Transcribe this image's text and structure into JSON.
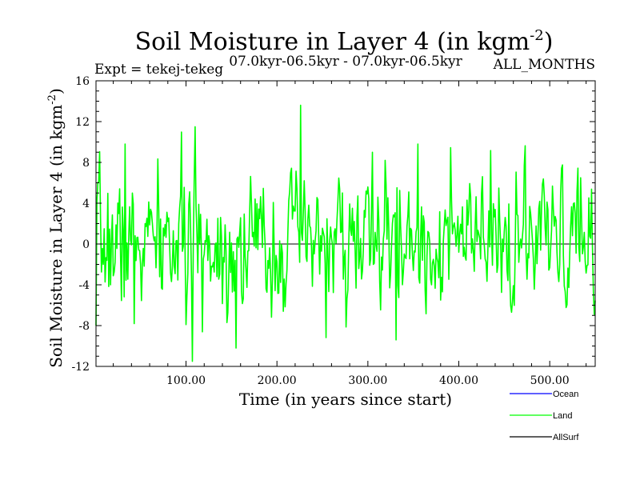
{
  "chart_data": {
    "type": "line",
    "title": "Soil Moisture in Layer 4 (in kgm",
    "title_sup": "-2",
    "title_close": ")",
    "subtitle_left": "Expt = tekej-tekeg",
    "subtitle_center": "07.0kyr-06.5kyr - 07.0kyr-06.5kyr",
    "subtitle_right": "ALL_MONTHS",
    "xlabel": "Time (in years since start)",
    "ylabel": "Soil Moisture in Layer 4 (in kgm",
    "ylabel_sup": "-2",
    "ylabel_close": ")",
    "xlim": [
      1,
      550
    ],
    "ylim": [
      -12,
      16
    ],
    "x_ticks": [
      100,
      200,
      300,
      400,
      500
    ],
    "x_tick_labels": [
      "100.00",
      "200.00",
      "300.00",
      "400.00",
      "500.00"
    ],
    "y_ticks": [
      -12,
      -8,
      -4,
      0,
      4,
      8,
      12,
      16
    ],
    "y_tick_labels": [
      "-12",
      "-8",
      "-4",
      "0",
      "4",
      "8",
      "12",
      "16"
    ],
    "zero_line": true,
    "series": [
      {
        "name": "Ocean",
        "color": "#0000ff",
        "values": []
      },
      {
        "name": "Land",
        "color": "#00ff00",
        "generated": {
          "count": 550,
          "mean": 0,
          "sd": 3.2,
          "ar": 0.35,
          "seed": 7
        },
        "extremes": [
          {
            "x": 107,
            "y": -11.5
          },
          {
            "x": 110,
            "y": 11.5
          },
          {
            "x": 155,
            "y": -10.2
          },
          {
            "x": 226,
            "y": 13.6
          },
          {
            "x": 331,
            "y": -9.4
          },
          {
            "x": 355,
            "y": 9.8
          },
          {
            "x": 1,
            "y": -8.0
          },
          {
            "x": 43,
            "y": -7.8
          },
          {
            "x": 33,
            "y": 9.8
          },
          {
            "x": 305,
            "y": 9.0
          }
        ]
      },
      {
        "name": "AllSurf",
        "color": "#000000",
        "values": []
      }
    ],
    "legend": [
      {
        "label": "Ocean",
        "color": "#0000ff"
      },
      {
        "label": "Land",
        "color": "#00ff00"
      },
      {
        "label": "AllSurf",
        "color": "#000000"
      }
    ],
    "legend_position": "bottom-right"
  }
}
